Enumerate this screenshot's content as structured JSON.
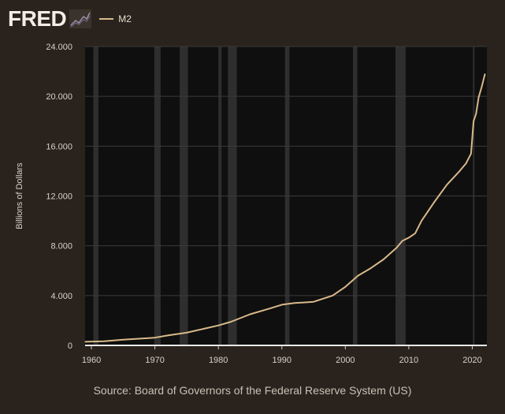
{
  "brand": {
    "logo_text": "FRED"
  },
  "legend": {
    "series_label": "M2"
  },
  "source_text": "Source: Board of Governors of the Federal Reserve System (US)",
  "colors": {
    "background": "#2a231d",
    "plot_background": "#0f0f0f",
    "recession_shade": "#2e2e2e",
    "grid": "#3a3a3a",
    "line": "#d9b98a",
    "baseline": "#e8e8e8"
  },
  "chart_data": {
    "type": "line",
    "ylabel": "Billions of Dollars",
    "xlim": [
      1959,
      2022.3
    ],
    "ylim": [
      0,
      24000
    ],
    "y_ticks": [
      0,
      4000,
      8000,
      12000,
      16000,
      20000,
      24000
    ],
    "y_tick_labels": [
      "0",
      "4.000",
      "8.000",
      "12.000",
      "16.000",
      "20.000",
      "24.000"
    ],
    "x_ticks": [
      1960,
      1970,
      1980,
      1990,
      2000,
      2010,
      2020
    ],
    "x_tick_labels": [
      "1960",
      "1970",
      "1980",
      "1990",
      "2000",
      "2010",
      "2020"
    ],
    "grid": true,
    "recessions": [
      [
        1960.3,
        1961.1
      ],
      [
        1969.9,
        1970.9
      ],
      [
        1973.9,
        1975.2
      ],
      [
        1980.0,
        1980.5
      ],
      [
        1981.5,
        1982.9
      ],
      [
        1990.5,
        1991.2
      ],
      [
        2001.2,
        2001.9
      ],
      [
        2007.9,
        2009.5
      ],
      [
        2020.1,
        2020.3
      ]
    ],
    "series": [
      {
        "name": "M2",
        "x": [
          1959,
          1962,
          1965,
          1968,
          1970,
          1972,
          1975,
          1978,
          1980,
          1982,
          1985,
          1988,
          1990,
          1992,
          1995,
          1998,
          2000,
          2002,
          2004,
          2006,
          2008,
          2009,
          2010,
          2011,
          2012,
          2014,
          2016,
          2018,
          2019,
          2019.8,
          2020.2,
          2020.6,
          2021,
          2021.5,
          2022
        ],
        "values": [
          290,
          330,
          460,
          560,
          620,
          800,
          1020,
          1370,
          1600,
          1900,
          2500,
          2950,
          3270,
          3400,
          3500,
          4000,
          4700,
          5600,
          6200,
          6900,
          7800,
          8400,
          8650,
          9000,
          10000,
          11500,
          12900,
          14000,
          14600,
          15400,
          18000,
          18600,
          19900,
          20800,
          21800
        ]
      }
    ]
  }
}
